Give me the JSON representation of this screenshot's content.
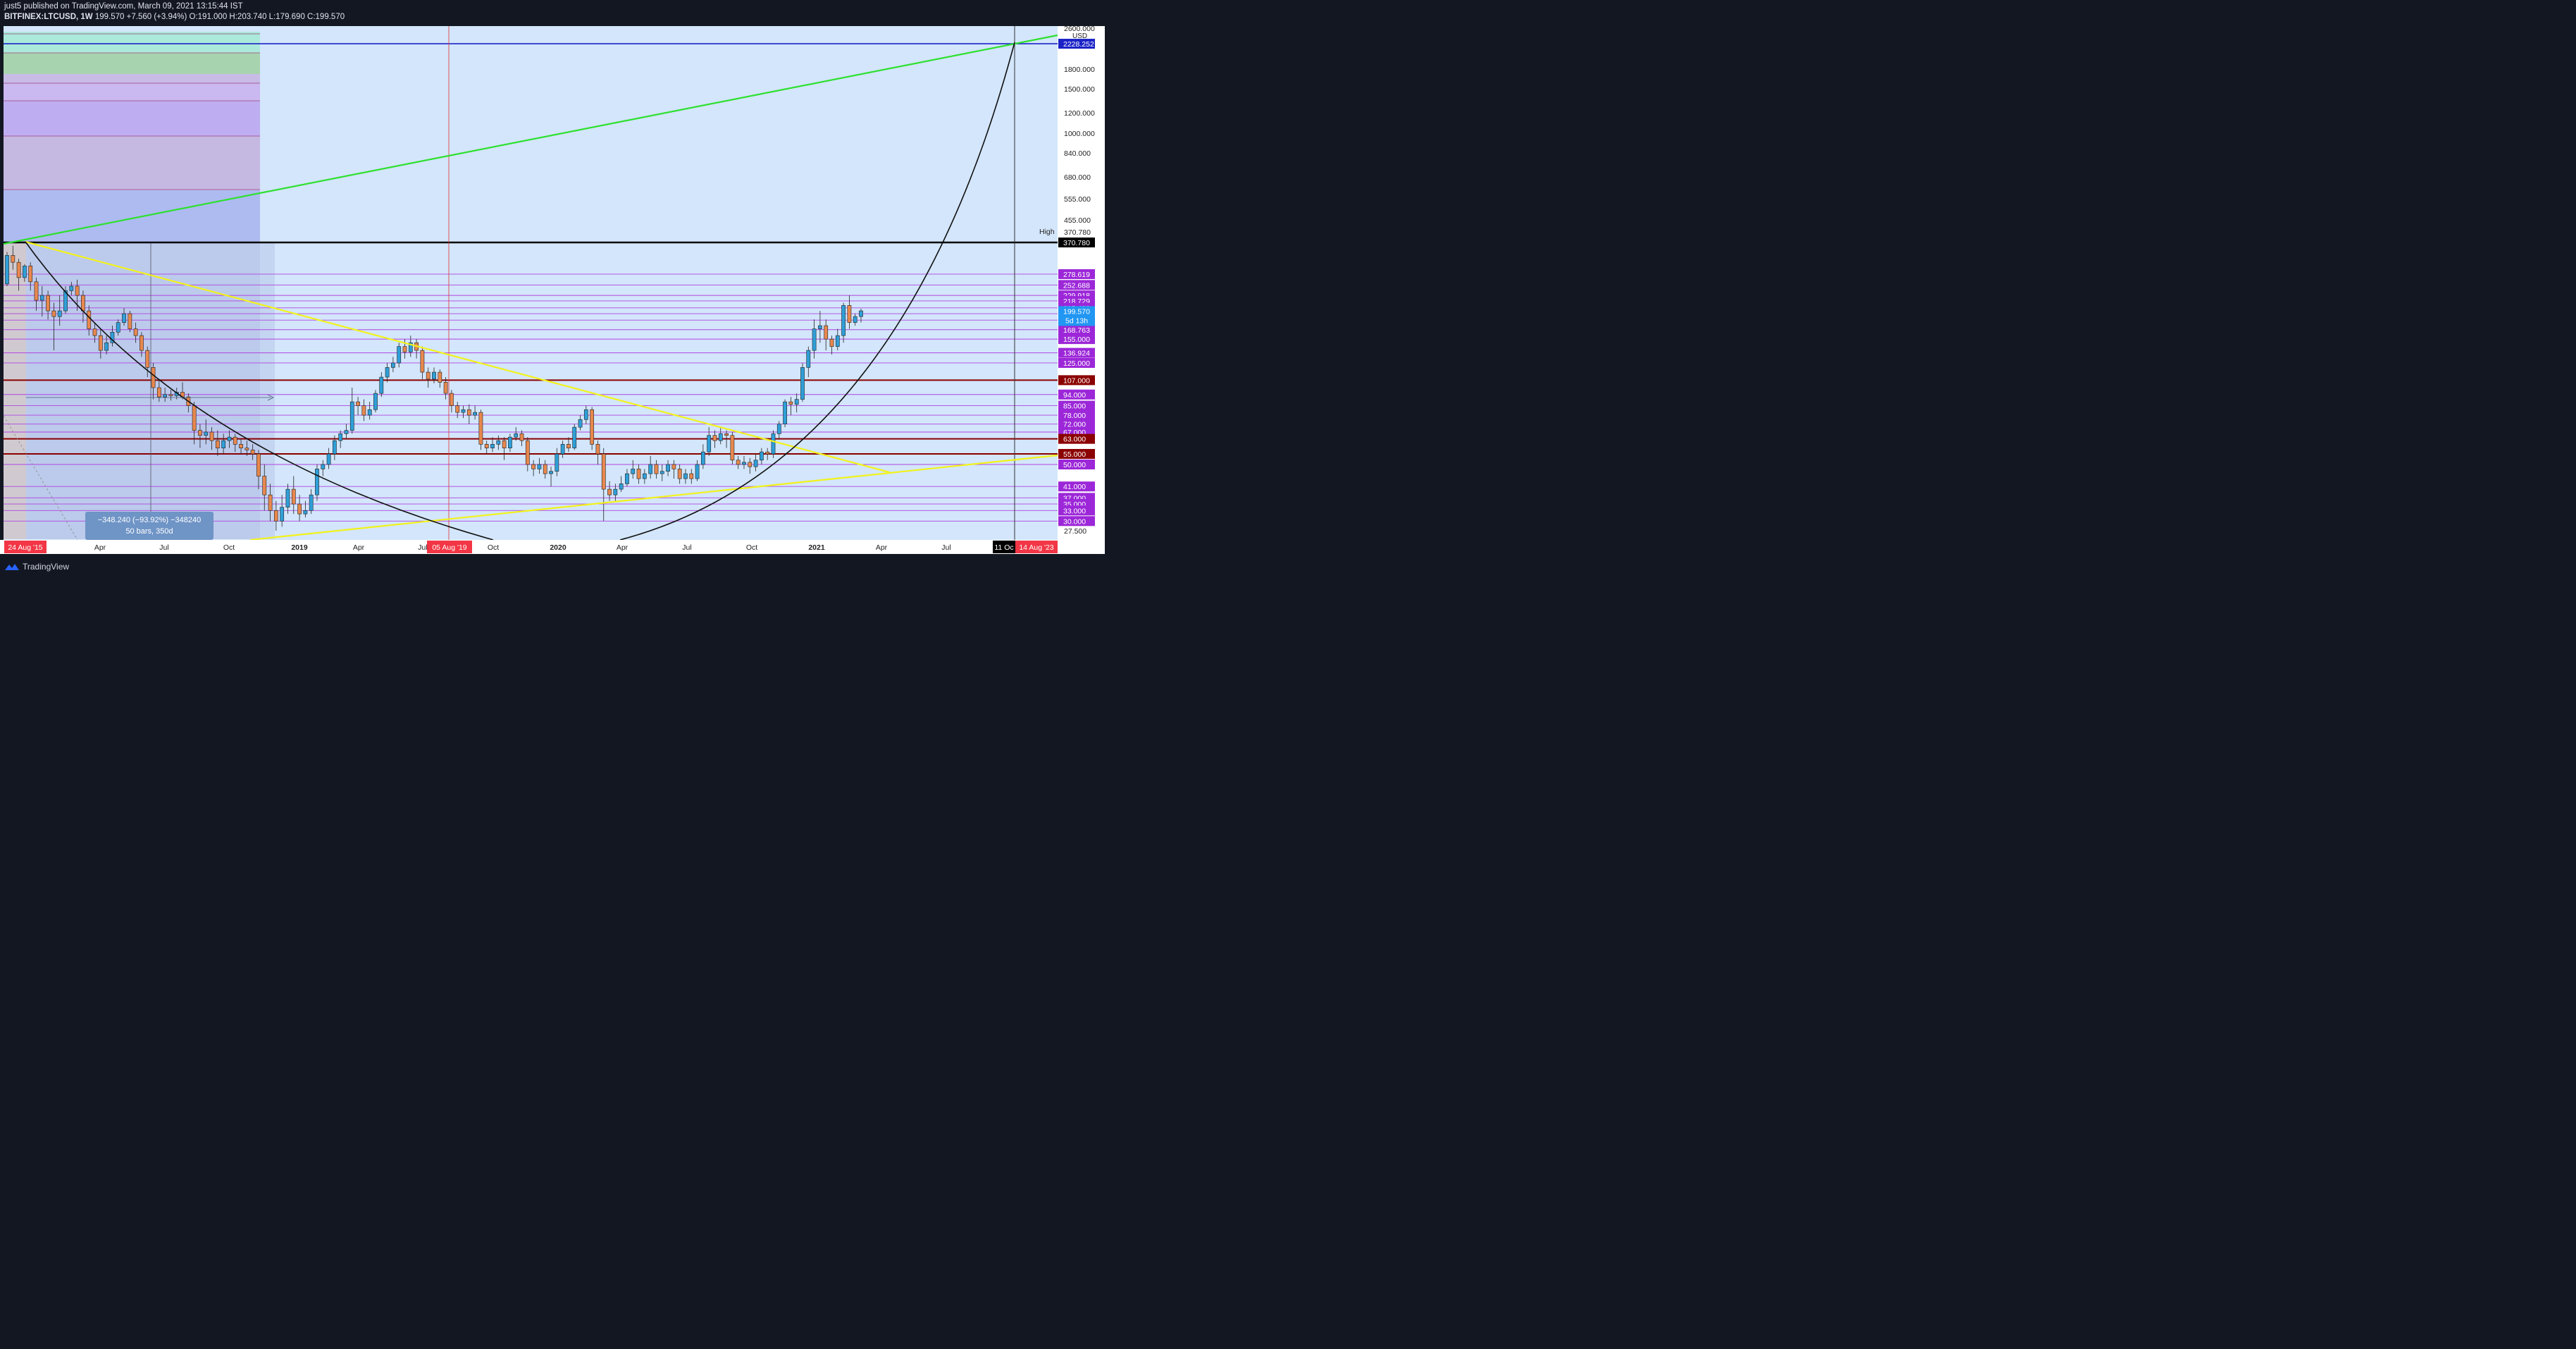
{
  "header": {
    "published": "just5 published on TradingView.com, March 09, 2021 13:15:44 IST",
    "symbol": "BITFINEX:LTCUSD, 1W",
    "last": "199.570",
    "change": "+7.560 (+3.94%)",
    "ohlc": "O:191.000  H:203.740  L:179.690  C:199.570"
  },
  "footer": {
    "brand": "TradingView"
  },
  "measure_box": {
    "line1": "−348.240 (−93.92%) −348240",
    "line2": "50 bars, 350d"
  },
  "colors": {
    "plot_bg": "#d3e6fb",
    "up": "#2f9fd8",
    "down": "#e8884e",
    "green_line": "#2ee02e",
    "yellow_line": "#f2f21a",
    "blue_line": "#1b23c7",
    "magenta_label": "#9c27d8",
    "maroon": "#8b0000",
    "red_label": "#f23645"
  },
  "chart_data": {
    "type": "candlestick",
    "symbol": "BITFINEX:LTCUSD",
    "interval": "1W",
    "y_scale": "log",
    "currency": "USD",
    "x_ticks": [
      "Apr",
      "Jul",
      "Oct",
      "2019",
      "Apr",
      "Jul",
      "Oct",
      "2020",
      "Apr",
      "Jul",
      "Oct",
      "2021",
      "Apr",
      "Jul"
    ],
    "y_ticks": [
      "2600.000",
      "1800.000",
      "1500.000",
      "1200.000",
      "1000.000",
      "840.000",
      "680.000",
      "555.000",
      "455.000",
      "370.780",
      "27.500"
    ],
    "date_labels": [
      "24 Aug '15",
      "05 Aug '19",
      "11 Oc",
      "14 Aug '23"
    ],
    "price_lines": [
      {
        "value": "2228.252",
        "style": "blue"
      },
      {
        "value": "370.780",
        "style": "black",
        "note": "High"
      },
      {
        "value": "278.619",
        "style": "magenta"
      },
      {
        "value": "252.688",
        "style": "magenta"
      },
      {
        "value": "229.918",
        "style": "magenta"
      },
      {
        "value": "218.729",
        "style": "magenta"
      },
      {
        "value": "205.488",
        "style": "magenta"
      },
      {
        "value": "195.000",
        "style": "magenta"
      },
      {
        "value": "184.000",
        "style": "magenta"
      },
      {
        "value": "168.763",
        "style": "magenta"
      },
      {
        "value": "155.000",
        "style": "magenta"
      },
      {
        "value": "136.924",
        "style": "magenta"
      },
      {
        "value": "125.000",
        "style": "magenta"
      },
      {
        "value": "107.000",
        "style": "maroon"
      },
      {
        "value": "94.000",
        "style": "magenta"
      },
      {
        "value": "85.000",
        "style": "magenta"
      },
      {
        "value": "78.000",
        "style": "magenta"
      },
      {
        "value": "72.000",
        "style": "magenta"
      },
      {
        "value": "67.000",
        "style": "magenta"
      },
      {
        "value": "63.000",
        "style": "maroon"
      },
      {
        "value": "55.000",
        "style": "maroon"
      },
      {
        "value": "50.000",
        "style": "magenta"
      },
      {
        "value": "41.000",
        "style": "magenta"
      },
      {
        "value": "37.000",
        "style": "magenta"
      },
      {
        "value": "35.000",
        "style": "magenta"
      },
      {
        "value": "33.000",
        "style": "magenta"
      },
      {
        "value": "30.000",
        "style": "magenta"
      }
    ],
    "last_price": {
      "value": "199.570",
      "countdown": "5d 13h"
    },
    "candles_o_c_h_l": [
      [
        255,
        330,
        340,
        250
      ],
      [
        330,
        310,
        360,
        290
      ],
      [
        310,
        270,
        320,
        240
      ],
      [
        270,
        300,
        305,
        260
      ],
      [
        300,
        260,
        310,
        240
      ],
      [
        260,
        220,
        270,
        200
      ],
      [
        220,
        230,
        250,
        190
      ],
      [
        230,
        200,
        240,
        185
      ],
      [
        200,
        190,
        215,
        140
      ],
      [
        190,
        200,
        230,
        175
      ],
      [
        200,
        240,
        250,
        195
      ],
      [
        240,
        250,
        260,
        230
      ],
      [
        250,
        230,
        265,
        200
      ],
      [
        230,
        200,
        240,
        180
      ],
      [
        200,
        170,
        210,
        160
      ],
      [
        170,
        160,
        180,
        150
      ],
      [
        160,
        140,
        170,
        130
      ],
      [
        140,
        150,
        160,
        135
      ],
      [
        150,
        165,
        175,
        145
      ],
      [
        165,
        180,
        185,
        160
      ],
      [
        180,
        195,
        205,
        175
      ],
      [
        195,
        170,
        200,
        165
      ],
      [
        170,
        160,
        180,
        150
      ],
      [
        160,
        140,
        165,
        132
      ],
      [
        140,
        120,
        145,
        110
      ],
      [
        120,
        100,
        125,
        90
      ],
      [
        100,
        92,
        108,
        88
      ],
      [
        92,
        94,
        100,
        88
      ],
      [
        94,
        93,
        98,
        89
      ],
      [
        93,
        96,
        100,
        90
      ],
      [
        96,
        92,
        105,
        90
      ],
      [
        92,
        85,
        95,
        80
      ],
      [
        85,
        68,
        88,
        60
      ],
      [
        68,
        65,
        72,
        58
      ],
      [
        65,
        67,
        75,
        60
      ],
      [
        67,
        62,
        70,
        57
      ],
      [
        62,
        58,
        68,
        54
      ],
      [
        58,
        62,
        66,
        55
      ],
      [
        62,
        64,
        68,
        58
      ],
      [
        64,
        60,
        66,
        56
      ],
      [
        60,
        58,
        63,
        55
      ],
      [
        58,
        57,
        62,
        54
      ],
      [
        57,
        55,
        60,
        52
      ],
      [
        55,
        45,
        57,
        40
      ],
      [
        45,
        38,
        50,
        33
      ],
      [
        38,
        33,
        42,
        30
      ],
      [
        33,
        30,
        36,
        27.5
      ],
      [
        30,
        34,
        38,
        28.5
      ],
      [
        34,
        40,
        42,
        32
      ],
      [
        40,
        35,
        45,
        32
      ],
      [
        35,
        32,
        38,
        30
      ],
      [
        32,
        33,
        36,
        31
      ],
      [
        33,
        38,
        40,
        32
      ],
      [
        38,
        48,
        50,
        36
      ],
      [
        48,
        50,
        52,
        45
      ],
      [
        50,
        55,
        58,
        48
      ],
      [
        55,
        62,
        65,
        52
      ],
      [
        62,
        66,
        68,
        58
      ],
      [
        66,
        68,
        72,
        63
      ],
      [
        68,
        88,
        100,
        66
      ],
      [
        88,
        85,
        92,
        78
      ],
      [
        85,
        78,
        90,
        74
      ],
      [
        78,
        82,
        88,
        75
      ],
      [
        82,
        95,
        98,
        80
      ],
      [
        95,
        110,
        115,
        92
      ],
      [
        110,
        120,
        125,
        105
      ],
      [
        120,
        125,
        132,
        115
      ],
      [
        125,
        145,
        150,
        120
      ],
      [
        145,
        138,
        155,
        130
      ],
      [
        138,
        150,
        160,
        132
      ],
      [
        150,
        140,
        155,
        130
      ],
      [
        140,
        115,
        145,
        108
      ],
      [
        115,
        108,
        120,
        100
      ],
      [
        108,
        115,
        120,
        104
      ],
      [
        115,
        105,
        118,
        100
      ],
      [
        105,
        95,
        110,
        90
      ],
      [
        95,
        85,
        98,
        80
      ],
      [
        85,
        80,
        88,
        76
      ],
      [
        80,
        82,
        85,
        76
      ],
      [
        82,
        78,
        86,
        72
      ],
      [
        78,
        80,
        85,
        75
      ],
      [
        80,
        60,
        82,
        57
      ],
      [
        60,
        58,
        62,
        55
      ],
      [
        58,
        60,
        64,
        56
      ],
      [
        60,
        62,
        65,
        57
      ],
      [
        62,
        58,
        64,
        52
      ],
      [
        58,
        64,
        66,
        56
      ],
      [
        64,
        66,
        70,
        62
      ],
      [
        66,
        62,
        68,
        59
      ],
      [
        62,
        50,
        64,
        47
      ],
      [
        50,
        48,
        52,
        45
      ],
      [
        48,
        50,
        53,
        46
      ],
      [
        50,
        46,
        52,
        44
      ],
      [
        46,
        47,
        49,
        41
      ],
      [
        47,
        55,
        58,
        45
      ],
      [
        55,
        60,
        62,
        53
      ],
      [
        60,
        58,
        64,
        56
      ],
      [
        58,
        70,
        72,
        57
      ],
      [
        70,
        75,
        78,
        68
      ],
      [
        75,
        82,
        85,
        72
      ],
      [
        82,
        60,
        84,
        57
      ],
      [
        60,
        55,
        62,
        50
      ],
      [
        55,
        40,
        58,
        30
      ],
      [
        40,
        38,
        43,
        36
      ],
      [
        38,
        40,
        42,
        36
      ],
      [
        40,
        42,
        45,
        39
      ],
      [
        42,
        46,
        48,
        41
      ],
      [
        46,
        48,
        52,
        44
      ],
      [
        48,
        44,
        50,
        42
      ],
      [
        44,
        46,
        48,
        42
      ],
      [
        46,
        50,
        54,
        44
      ],
      [
        50,
        46,
        52,
        44
      ],
      [
        46,
        47,
        50,
        43
      ],
      [
        47,
        50,
        52,
        45
      ],
      [
        50,
        48,
        52,
        44
      ],
      [
        48,
        44,
        50,
        42
      ],
      [
        44,
        46,
        48,
        42
      ],
      [
        46,
        44,
        48,
        42
      ],
      [
        44,
        50,
        52,
        43
      ],
      [
        50,
        56,
        60,
        48
      ],
      [
        56,
        65,
        70,
        54
      ],
      [
        65,
        62,
        68,
        58
      ],
      [
        62,
        66,
        70,
        60
      ],
      [
        66,
        65,
        68,
        58
      ],
      [
        65,
        52,
        67,
        50
      ],
      [
        52,
        50,
        54,
        48
      ],
      [
        50,
        51,
        54,
        48
      ],
      [
        51,
        49,
        53,
        46
      ],
      [
        49,
        52,
        55,
        47
      ],
      [
        52,
        56,
        58,
        50
      ],
      [
        56,
        55,
        58,
        52
      ],
      [
        55,
        66,
        68,
        53
      ],
      [
        66,
        72,
        74,
        63
      ],
      [
        72,
        88,
        90,
        70
      ],
      [
        88,
        86,
        92,
        78
      ],
      [
        86,
        90,
        95,
        80
      ],
      [
        90,
        120,
        125,
        88
      ],
      [
        120,
        140,
        145,
        110
      ],
      [
        140,
        170,
        185,
        130
      ],
      [
        170,
        175,
        200,
        150
      ],
      [
        175,
        155,
        185,
        140
      ],
      [
        155,
        145,
        160,
        135
      ],
      [
        145,
        160,
        170,
        140
      ],
      [
        160,
        210,
        215,
        150
      ],
      [
        210,
        180,
        230,
        170
      ],
      [
        180,
        190,
        195,
        175
      ],
      [
        190,
        200,
        204,
        180
      ]
    ]
  }
}
